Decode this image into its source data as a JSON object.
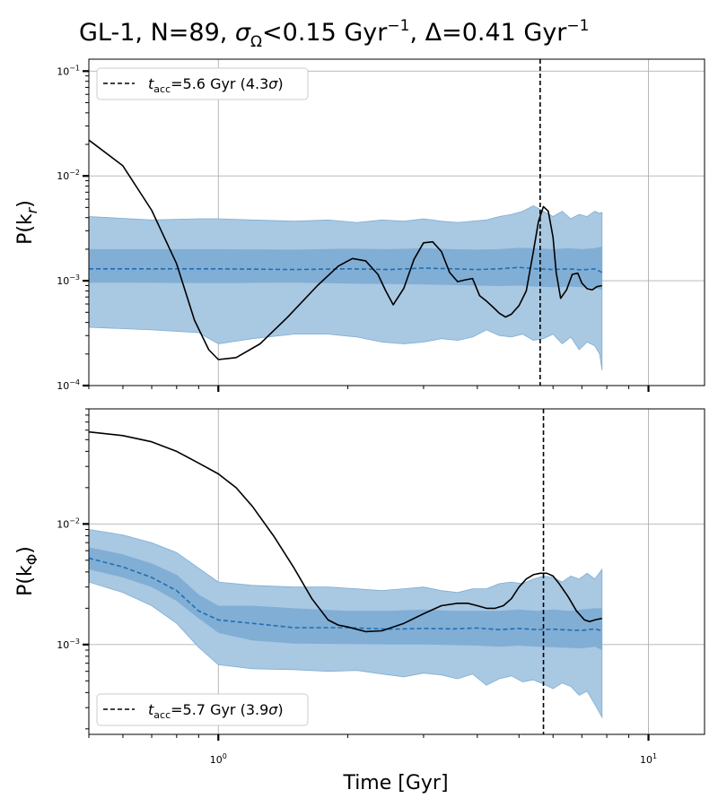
{
  "chart_data": [
    {
      "type": "line",
      "title": "GL-1, N=89, σΩ<0.15 Gyr⁻¹, Δ=0.41 Gyr⁻¹",
      "title_parts": {
        "prefix": "GL-1, N=89, ",
        "sigma": "σ",
        "sigma_sub": "Ω",
        "cut": "<0.15 Gyr",
        "cut_sup": "−1",
        "delta": ", Δ=0.41 Gyr",
        "delta_sup": "−1"
      },
      "ylabel": "P(k_r)",
      "ylabel_parts": {
        "base": "P(k",
        "sub": "r",
        "close": ")"
      },
      "xlabel": "",
      "xscale": "log",
      "yscale": "log",
      "xlim": [
        0.5,
        13.5
      ],
      "ylim": [
        0.0001,
        0.13
      ],
      "x_ticks": [],
      "y_ticks": [
        {
          "value": 0.1,
          "base": "10",
          "exp": "−1"
        },
        {
          "value": 0.01,
          "base": "10",
          "exp": "−2"
        },
        {
          "value": 0.001,
          "base": "10",
          "exp": "−3"
        },
        {
          "value": 0.0001,
          "base": "10",
          "exp": "−4"
        }
      ],
      "grid": true,
      "legend": {
        "placement": "top-left",
        "label_prefix": "t",
        "label_sub": "acc",
        "label_text": "=5.6 Gyr (4.3",
        "label_sigma": "σ",
        "label_close": ")",
        "label": "t_acc=5.6 Gyr (4.3σ)"
      },
      "accretion_time": 5.6,
      "series": [
        {
          "name": "observed",
          "x": [
            0.5,
            0.6,
            0.7,
            0.8,
            0.88,
            0.95,
            1.0,
            1.1,
            1.25,
            1.45,
            1.7,
            1.9,
            2.05,
            2.2,
            2.35,
            2.45,
            2.55,
            2.7,
            2.85,
            3.0,
            3.15,
            3.3,
            3.45,
            3.6,
            3.75,
            3.9,
            4.05,
            4.2,
            4.35,
            4.5,
            4.65,
            4.8,
            5.0,
            5.2,
            5.4,
            5.55,
            5.7,
            5.85,
            6.0,
            6.1,
            6.25,
            6.45,
            6.65,
            6.85,
            7.0,
            7.2,
            7.4,
            7.6,
            7.8
          ],
          "y": [
            0.022,
            0.0125,
            0.0047,
            0.00145,
            0.00042,
            0.00022,
            0.000177,
            0.000185,
            0.00025,
            0.00045,
            0.0009,
            0.00138,
            0.00163,
            0.00155,
            0.00115,
            0.0008,
            0.00059,
            0.00085,
            0.0016,
            0.0023,
            0.00235,
            0.0019,
            0.0012,
            0.00098,
            0.00102,
            0.00105,
            0.00072,
            0.00064,
            0.00056,
            0.00049,
            0.00045,
            0.00048,
            0.00058,
            0.0008,
            0.0019,
            0.0037,
            0.0051,
            0.0046,
            0.0026,
            0.0012,
            0.00068,
            0.00082,
            0.00115,
            0.00118,
            0.00095,
            0.00084,
            0.00082,
            0.00088,
            0.0009
          ]
        },
        {
          "name": "null median",
          "x": [
            0.5,
            1.0,
            1.5,
            2.0,
            2.5,
            3.0,
            3.5,
            4.0,
            4.5,
            5.0,
            5.5,
            6.0,
            6.5,
            7.0,
            7.5,
            7.8
          ],
          "y": [
            0.0013,
            0.0013,
            0.00128,
            0.0013,
            0.00128,
            0.00132,
            0.0013,
            0.00128,
            0.0013,
            0.00134,
            0.0013,
            0.00128,
            0.0013,
            0.00127,
            0.0013,
            0.0012
          ]
        },
        {
          "name": "null 1σ band",
          "x": [
            0.5,
            1.0,
            1.5,
            2.0,
            2.5,
            3.0,
            3.5,
            4.0,
            4.5,
            5.0,
            5.5,
            6.0,
            6.5,
            7.0,
            7.5,
            7.8
          ],
          "lower": [
            0.00096,
            0.00095,
            0.00096,
            0.00094,
            0.00093,
            0.00092,
            0.00091,
            0.0009,
            0.00089,
            0.0009,
            0.00088,
            0.00087,
            0.00088,
            0.00087,
            0.00086,
            0.00082
          ],
          "upper": [
            0.002,
            0.002,
            0.00198,
            0.00202,
            0.002,
            0.00204,
            0.002,
            0.00198,
            0.002,
            0.00206,
            0.00204,
            0.002,
            0.00204,
            0.002,
            0.00205,
            0.00212
          ]
        },
        {
          "name": "null 2σ band",
          "x": [
            0.5,
            0.7,
            0.9,
            1.0,
            1.2,
            1.5,
            1.8,
            2.1,
            2.4,
            2.7,
            3.0,
            3.3,
            3.6,
            3.9,
            4.2,
            4.5,
            4.8,
            5.1,
            5.4,
            5.7,
            6.0,
            6.3,
            6.6,
            6.9,
            7.2,
            7.5,
            7.7,
            7.8
          ],
          "lower": [
            0.00036,
            0.00034,
            0.00032,
            0.00025,
            0.00028,
            0.00031,
            0.00031,
            0.00029,
            0.00026,
            0.00025,
            0.00026,
            0.00028,
            0.00027,
            0.00029,
            0.00034,
            0.0003,
            0.00029,
            0.00031,
            0.00027,
            0.00028,
            0.00031,
            0.00025,
            0.00029,
            0.00022,
            0.00026,
            0.00024,
            0.0002,
            0.00014
          ],
          "upper": [
            0.0041,
            0.0038,
            0.0039,
            0.0039,
            0.0038,
            0.0037,
            0.0038,
            0.0036,
            0.0038,
            0.0037,
            0.0039,
            0.0037,
            0.0036,
            0.0037,
            0.0038,
            0.0041,
            0.0043,
            0.0046,
            0.0052,
            0.0046,
            0.0041,
            0.0046,
            0.0039,
            0.0043,
            0.0041,
            0.0046,
            0.0044,
            0.0045
          ]
        }
      ]
    },
    {
      "type": "line",
      "title": "",
      "ylabel": "P(k_Φ)",
      "ylabel_parts": {
        "base": "P(k",
        "sub": "Φ",
        "close": ")"
      },
      "xlabel": "Time [Gyr]",
      "xscale": "log",
      "yscale": "log",
      "xlim": [
        0.5,
        13.5
      ],
      "ylim": [
        0.00018,
        0.09
      ],
      "x_ticks": [
        {
          "value": 1,
          "base": "10",
          "exp": "0"
        },
        {
          "value": 10,
          "base": "10",
          "exp": "1"
        }
      ],
      "y_ticks": [
        {
          "value": 0.01,
          "base": "10",
          "exp": "−2"
        },
        {
          "value": 0.001,
          "base": "10",
          "exp": "−3"
        }
      ],
      "grid": true,
      "legend": {
        "placement": "bottom-left",
        "label_prefix": "t",
        "label_sub": "acc",
        "label_text": "=5.7 Gyr (3.9",
        "label_sigma": "σ",
        "label_close": ")",
        "label": "t_acc=5.7 Gyr (3.9σ)"
      },
      "accretion_time": 5.7,
      "series": [
        {
          "name": "observed",
          "x": [
            0.5,
            0.6,
            0.7,
            0.8,
            0.9,
            1.0,
            1.1,
            1.2,
            1.35,
            1.5,
            1.65,
            1.8,
            1.9,
            2.0,
            2.2,
            2.4,
            2.7,
            3.0,
            3.3,
            3.6,
            3.8,
            4.0,
            4.2,
            4.4,
            4.6,
            4.8,
            5.0,
            5.2,
            5.4,
            5.6,
            5.8,
            6.0,
            6.2,
            6.5,
            6.8,
            7.1,
            7.3,
            7.5,
            7.8
          ],
          "y": [
            0.058,
            0.054,
            0.048,
            0.04,
            0.032,
            0.026,
            0.02,
            0.014,
            0.0078,
            0.0043,
            0.0024,
            0.0016,
            0.00145,
            0.0014,
            0.00128,
            0.0013,
            0.0015,
            0.0018,
            0.0021,
            0.0022,
            0.0022,
            0.0021,
            0.002,
            0.002,
            0.0021,
            0.0024,
            0.003,
            0.0035,
            0.0038,
            0.0039,
            0.0039,
            0.0037,
            0.0032,
            0.0025,
            0.0019,
            0.0016,
            0.00155,
            0.0016,
            0.00165
          ]
        },
        {
          "name": "null median",
          "x": [
            0.5,
            0.6,
            0.7,
            0.8,
            0.9,
            1.0,
            1.2,
            1.5,
            2.0,
            2.5,
            3.0,
            3.5,
            4.0,
            4.5,
            5.0,
            5.5,
            6.0,
            6.5,
            7.0,
            7.5,
            7.8
          ],
          "y": [
            0.0052,
            0.0044,
            0.0036,
            0.0028,
            0.0019,
            0.0016,
            0.0015,
            0.00138,
            0.00138,
            0.00134,
            0.00136,
            0.00135,
            0.00137,
            0.00133,
            0.00136,
            0.00133,
            0.00134,
            0.00132,
            0.00131,
            0.00135,
            0.0013
          ]
        },
        {
          "name": "null 1σ band",
          "x": [
            0.5,
            0.6,
            0.7,
            0.8,
            0.9,
            1.0,
            1.2,
            1.5,
            2.0,
            2.5,
            3.0,
            3.5,
            4.0,
            4.5,
            5.0,
            5.5,
            6.0,
            6.5,
            7.0,
            7.5,
            7.8
          ],
          "lower": [
            0.0042,
            0.0036,
            0.003,
            0.0023,
            0.00165,
            0.00125,
            0.00108,
            0.00102,
            0.00101,
            0.001,
            0.001,
            0.00099,
            0.00098,
            0.00096,
            0.00098,
            0.00096,
            0.00095,
            0.00094,
            0.00093,
            0.00096,
            0.0009
          ],
          "upper": [
            0.0064,
            0.0056,
            0.0047,
            0.0038,
            0.0026,
            0.0021,
            0.0021,
            0.002,
            0.0019,
            0.0019,
            0.00195,
            0.0019,
            0.0019,
            0.0019,
            0.00195,
            0.0019,
            0.00195,
            0.0019,
            0.00195,
            0.002,
            0.002
          ]
        },
        {
          "name": "null 2σ band",
          "x": [
            0.5,
            0.6,
            0.7,
            0.8,
            0.9,
            1.0,
            1.2,
            1.5,
            1.8,
            2.1,
            2.4,
            2.7,
            3.0,
            3.3,
            3.6,
            3.9,
            4.2,
            4.5,
            4.8,
            5.1,
            5.4,
            5.7,
            6.0,
            6.3,
            6.6,
            6.9,
            7.2,
            7.5,
            7.8
          ],
          "lower": [
            0.0033,
            0.0027,
            0.0021,
            0.0015,
            0.00095,
            0.00068,
            0.00063,
            0.00062,
            0.0006,
            0.00061,
            0.00057,
            0.00054,
            0.00058,
            0.00056,
            0.00052,
            0.00057,
            0.00046,
            0.00052,
            0.00055,
            0.00049,
            0.00051,
            0.00047,
            0.00043,
            0.00048,
            0.00045,
            0.00038,
            0.00041,
            0.00032,
            0.00025
          ],
          "upper": [
            0.009,
            0.0081,
            0.007,
            0.0058,
            0.0043,
            0.0033,
            0.0031,
            0.003,
            0.003,
            0.0029,
            0.0028,
            0.0029,
            0.003,
            0.0028,
            0.0027,
            0.0029,
            0.0029,
            0.0032,
            0.0033,
            0.0032,
            0.0035,
            0.0037,
            0.0036,
            0.0033,
            0.0037,
            0.0035,
            0.0039,
            0.0035,
            0.0042
          ]
        }
      ]
    }
  ],
  "colors": {
    "band_outer": "#a9c8e2",
    "band_outer_edge": "#7eaed5",
    "band_inner": "#74a6d0",
    "median_line": "#1f6fb4",
    "observed_line": "#000000",
    "grid": "#b0b0b0",
    "axis": "#000000"
  }
}
